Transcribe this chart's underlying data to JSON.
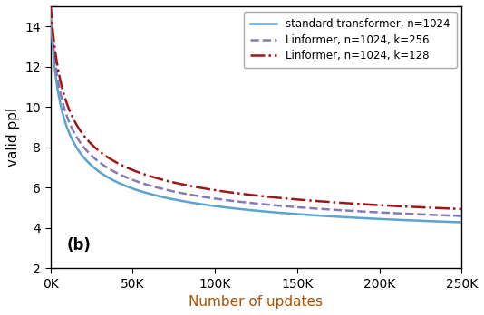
{
  "title": "",
  "xlabel": "Number of updates",
  "ylabel": "valid ppl",
  "xlim": [
    0,
    250000
  ],
  "ylim": [
    2,
    15
  ],
  "yticks": [
    2,
    4,
    6,
    8,
    10,
    12,
    14
  ],
  "xticks": [
    0,
    50000,
    100000,
    150000,
    200000,
    250000
  ],
  "xtick_labels": [
    "0K",
    "50K",
    "100K",
    "150K",
    "200K",
    "250K"
  ],
  "annotation": "(b)",
  "legend": [
    {
      "label": "standard transformer, n=1024",
      "color": "#5ba3d0",
      "linestyle": "solid",
      "linewidth": 1.8
    },
    {
      "label": "Linformer, n=1024, k=256",
      "color": "#8878b8",
      "linestyle": "dashed",
      "linewidth": 1.8
    },
    {
      "label": "Linformer, n=1024, k=128",
      "color": "#a01515",
      "linestyle": "dashdot",
      "linewidth": 1.8
    }
  ],
  "standard_params": {
    "a": 12.0,
    "k": 0.00028,
    "c": 2.85
  },
  "linformer256_params": {
    "a": 12.0,
    "k": 0.00024,
    "c": 3.05
  },
  "linformer128_params": {
    "a": 12.0,
    "k": 0.0002,
    "c": 3.25
  },
  "xlabel_color": "#b05000",
  "axis_label_fontsize": 11,
  "tick_label_fontsize": 10,
  "curve_start_x": 100,
  "curve_end_x": 250000,
  "num_points": 1000
}
